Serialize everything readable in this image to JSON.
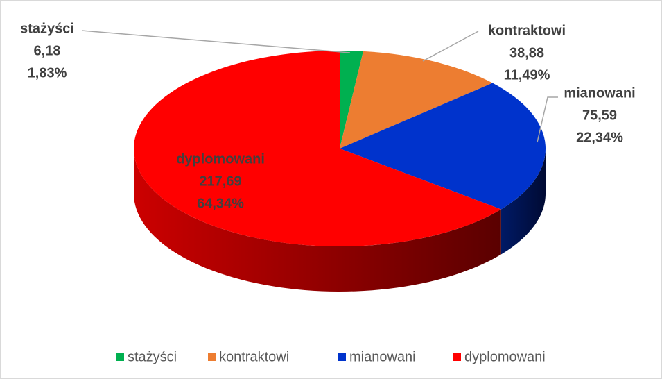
{
  "chart_data": {
    "type": "pie3d",
    "categories": [
      "stażyści",
      "kontraktowi",
      "mianowani",
      "dyplomowani"
    ],
    "values": [
      6.18,
      38.88,
      75.59,
      217.69
    ],
    "value_labels": [
      "6,18",
      "38,88",
      "75,59",
      "217,69"
    ],
    "percents": [
      1.83,
      11.49,
      22.34,
      64.34
    ],
    "percent_labels": [
      "1,83%",
      "11,49%",
      "22,34%",
      "64,34%"
    ],
    "colors": [
      "#00b050",
      "#ed7d31",
      "#0033cc",
      "#ff0000"
    ],
    "legend": "bottom"
  }
}
